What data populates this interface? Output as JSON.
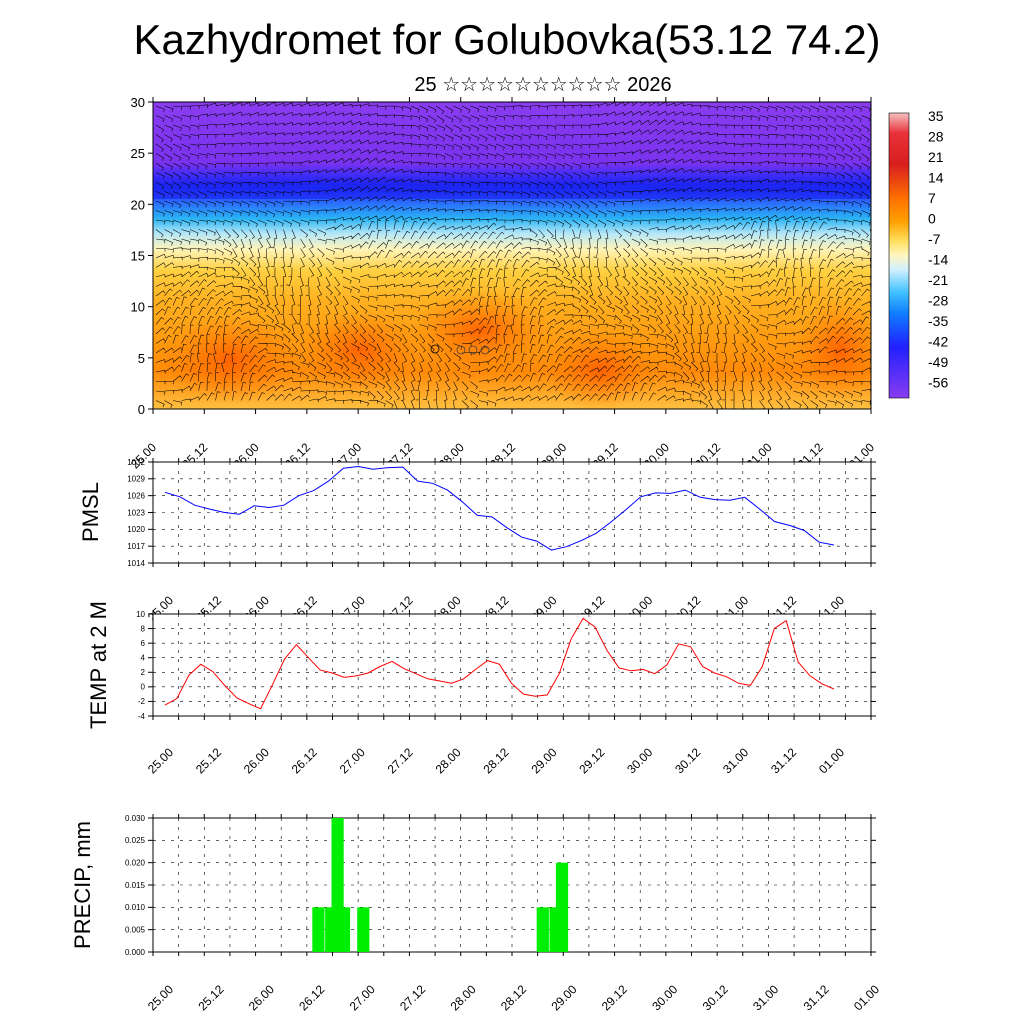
{
  "header": {
    "title": "Kazhydromet for Golubovka(53.12 74.2)",
    "subtitle": "25 ☆☆☆☆☆☆☆☆☆☆ 2026"
  },
  "time_labels": [
    "25.00",
    "25.12",
    "26.00",
    "26.12",
    "27.00",
    "27.12",
    "28.00",
    "28.12",
    "29.00",
    "29.12",
    "30.00",
    "30.12",
    "31.00",
    "31.12",
    "01.00"
  ],
  "chart_data": [
    {
      "type": "heatmap",
      "title": "",
      "x": [
        "25.00",
        "25.12",
        "26.00",
        "26.12",
        "27.00",
        "27.12",
        "28.00",
        "28.12",
        "29.00",
        "29.12",
        "30.00",
        "30.12",
        "31.00",
        "31.12",
        "01.00"
      ],
      "ylim": [
        0,
        30
      ],
      "y_ticks": [
        0,
        5,
        10,
        15,
        20,
        25,
        30
      ],
      "colorbar": {
        "labels": [
          "35",
          "28",
          "21",
          "14",
          "7",
          "0",
          "-7",
          "-14",
          "-21",
          "-28",
          "-35",
          "-42",
          "-49",
          "-56"
        ],
        "values": [
          35,
          28,
          21,
          14,
          7,
          0,
          -7,
          -14,
          -21,
          -28,
          -35,
          -42,
          -49,
          -56
        ]
      },
      "bands": [
        {
          "y_range": [
            0,
            7
          ],
          "value": 18
        },
        {
          "y_range": [
            7,
            14
          ],
          "value": 8
        },
        {
          "y_range": [
            14,
            18
          ],
          "value": -8
        },
        {
          "y_range": [
            18,
            21
          ],
          "value": -35
        },
        {
          "y_range": [
            21,
            23
          ],
          "value": -49
        },
        {
          "y_range": [
            23,
            30
          ],
          "value": -56
        }
      ],
      "overlay": "wind barbs"
    },
    {
      "type": "line",
      "ylabel": "PMSL",
      "ylim": [
        1014,
        1032
      ],
      "y_ticks": [
        1014,
        1017,
        1020,
        1023,
        1026,
        1029,
        1032
      ],
      "color": "#0000ff",
      "series": [
        {
          "values": [
            1026.6,
            1025.8,
            1024.3,
            1023.6,
            1023.0,
            1022.7,
            1024.2,
            1023.9,
            1024.3,
            1026.0,
            1026.9,
            1028.6,
            1030.9,
            1031.2,
            1030.7,
            1031.0,
            1031.1,
            1028.6,
            1028.2,
            1027.0,
            1024.9,
            1022.5,
            1022.2,
            1020.3,
            1018.6,
            1017.9,
            1016.3,
            1016.9,
            1018.0,
            1019.3,
            1021.3,
            1023.5,
            1025.8,
            1026.5,
            1026.4,
            1027.0,
            1025.7,
            1025.3,
            1025.2,
            1025.7,
            1023.6,
            1021.4,
            1020.7,
            1019.8,
            1017.7,
            1017.2
          ]
        }
      ]
    },
    {
      "type": "line",
      "ylabel": "TEMP at 2 M",
      "ylim": [
        -4,
        10
      ],
      "y_ticks": [
        -4,
        -2,
        0,
        2,
        4,
        6,
        8,
        10
      ],
      "color": "#ff0000",
      "series": [
        {
          "values": [
            -2.5,
            -1.6,
            1.6,
            3.1,
            2.1,
            0.2,
            -1.5,
            -2.3,
            -3.0,
            0.3,
            3.8,
            5.8,
            4.0,
            2.3,
            1.9,
            1.3,
            1.5,
            1.9,
            2.8,
            3.5,
            2.5,
            1.8,
            1.1,
            0.8,
            0.5,
            1.1,
            2.4,
            3.6,
            3.1,
            0.5,
            -1.0,
            -1.3,
            -1.1,
            1.8,
            6.6,
            9.4,
            8.2,
            5.0,
            2.6,
            2.2,
            2.4,
            1.8,
            3.0,
            5.9,
            5.5,
            2.8,
            1.9,
            1.4,
            0.5,
            0.2,
            2.8,
            8.0,
            9.1,
            3.4,
            1.5,
            0.4,
            -0.3
          ]
        }
      ]
    },
    {
      "type": "bar",
      "ylabel": "PRECIP, mm",
      "ylim": [
        0,
        0.03
      ],
      "y_ticks": [
        "0.000",
        "0.005",
        "0.010",
        "0.015",
        "0.020",
        "0.025",
        "0.030"
      ],
      "color": "#00ee00",
      "bars": [
        {
          "t": 12.9,
          "value": 0.01
        },
        {
          "t": 13.9,
          "value": 0.01
        },
        {
          "t": 14.4,
          "value": 0.03
        },
        {
          "t": 14.9,
          "value": 0.01
        },
        {
          "t": 16.4,
          "value": 0.01
        },
        {
          "t": 30.4,
          "value": 0.01
        },
        {
          "t": 31.4,
          "value": 0.01
        },
        {
          "t": 31.9,
          "value": 0.02
        }
      ]
    }
  ]
}
